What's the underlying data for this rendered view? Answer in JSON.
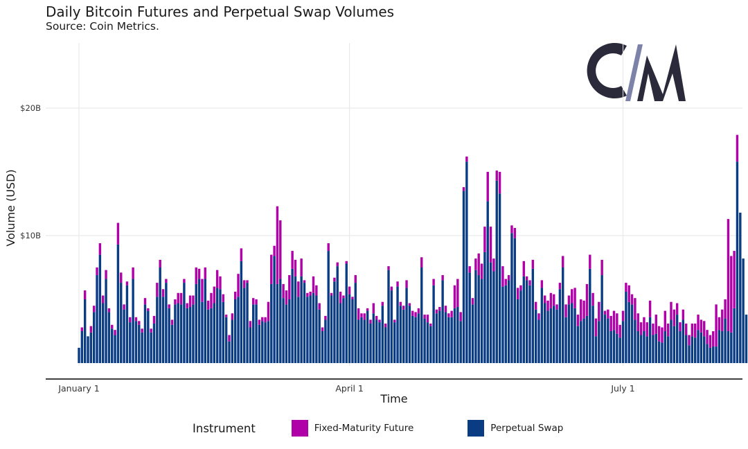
{
  "title": "Daily Bitcoin Futures and Perpetual Swap Volumes",
  "subtitle": "Source: Coin Metrics.",
  "logo": {
    "alt": "CM",
    "color_dark": "#2a2a3a",
    "color_light": "#7d82a8"
  },
  "colors": {
    "fixed": "#b000a8",
    "perpetual": "#0a3c84",
    "grid": "#e6e6e6",
    "axis": "#000000"
  },
  "legend": {
    "title": "Instrument",
    "items": [
      {
        "label": "Fixed-Maturity Future",
        "color": "#b000a8"
      },
      {
        "label": "Perpetual Swap",
        "color": "#0a3c84"
      }
    ]
  },
  "chart_data": {
    "type": "bar",
    "stacked": true,
    "title": "Daily Bitcoin Futures and Perpetual Swap Volumes",
    "xlabel": "Time",
    "ylabel": "Volume (USD)",
    "ylim": [
      0,
      25
    ],
    "y_unit": "USD billions",
    "y_ticks": [
      {
        "value": 10,
        "label": "$10B"
      },
      {
        "value": 20,
        "label": "$20B"
      }
    ],
    "x_ticks": [
      {
        "day": 0,
        "label": "January 1"
      },
      {
        "day": 90,
        "label": "April 1"
      },
      {
        "day": 181,
        "label": "July 1"
      }
    ],
    "series": [
      {
        "name": "Fixed-Maturity Future",
        "values": [
          0,
          0.3,
          0.7,
          0,
          0.5,
          0.5,
          0.6,
          0.9,
          0.6,
          0.7,
          0.3,
          0.3,
          0.4,
          1.7,
          0.8,
          0.4,
          0.3,
          0.4,
          0.9,
          0.3,
          0.3,
          0.3,
          0.5,
          0.2,
          0.3,
          0.6,
          1.1,
          0.6,
          0.6,
          0.3,
          0.3,
          0.4,
          0.4,
          0.8,
          0.9,
          0.3,
          0.4,
          0.9,
          0.7,
          1.3,
          0.8,
          1.8,
          0.9,
          0.7,
          1.2,
          1.3,
          1.4,
          1.0,
          0.6,
          0.2,
          0.5,
          0.5,
          0.6,
          1.8,
          1.0,
          0.6,
          0.2,
          0.5,
          0.5,
          0.4,
          0.4,
          0.3,
          0.4,
          1.5,
          2.3,
          0.8,
          6.1,
          4.6,
          1.1,
          1.1,
          1.9,
          1.4,
          1.3,
          1.2,
          1.4,
          0.2,
          0.3,
          0.3,
          1.3,
          0.8,
          0.5,
          0.3,
          0.3,
          0.6,
          0.2,
          0.3,
          0.3,
          0.9,
          0.2,
          0.2,
          0.6,
          0.2,
          0.6,
          0.9,
          0.3,
          0.5,
          0.2,
          0.3,
          0.8,
          0.3,
          0.2,
          0.3,
          0.3,
          0.3,
          0.3,
          0.2,
          0.4,
          0.3,
          0.3,
          0.6,
          0.2,
          0.4,
          0.4,
          0.4,
          0.8,
          0.3,
          0.6,
          0.2,
          0.5,
          0.3,
          0.3,
          0.4,
          0.5,
          0.3,
          0.5,
          1.8,
          2.2,
          0.7,
          0.3,
          0.4,
          0.5,
          0.5,
          0.9,
          1.7,
          1.2,
          2.0,
          2.3,
          2.8,
          1.0,
          0.8,
          1.7,
          1.6,
          0.5,
          0.4,
          0.6,
          0.8,
          0.9,
          0.4,
          1.2,
          0.3,
          0.4,
          0.7,
          0.6,
          0.5,
          0.6,
          0.6,
          0.8,
          1.2,
          0.9,
          0.4,
          0.5,
          0.9,
          1.0,
          0.7,
          1.1,
          1.6,
          0.9,
          1.7,
          1.4,
          2.5,
          1.1,
          1.0,
          1.4,
          1.5,
          1.2,
          0.3,
          0.7,
          1.2,
          1.5,
          1.6,
          1.0,
          0.8,
          0.7,
          1.3,
          0.8,
          1.7,
          1.4,
          1.0,
          1.1,
          1.1,
          1.3,
          0.9,
          1.5,
          1.2,
          1.2,
          1.6,
          1.0,
          1.4,
          1.3,
          0.9,
          0.7,
          0.8,
          0.9,
          0.8,
          1.0,
          1.1,
          1.2,
          1.0,
          1.2,
          1.1,
          1.0,
          1.2,
          3.3,
          1.0,
          1.7,
          1.5,
          8.8,
          6.0,
          4.5,
          2.1
        ]
      },
      {
        "name": "Perpetual Swap",
        "values": [
          1.2,
          2.5,
          5.0,
          2.1,
          2.4,
          4.0,
          6.9,
          8.5,
          4.7,
          6.6,
          4.0,
          2.7,
          2.2,
          9.3,
          6.3,
          4.2,
          6.1,
          3.2,
          6.6,
          3.3,
          3.0,
          2.4,
          4.6,
          4.1,
          2.4,
          3.1,
          5.2,
          7.5,
          5.2,
          6.3,
          4.3,
          3.0,
          4.6,
          4.7,
          4.6,
          6.3,
          4.3,
          4.4,
          4.6,
          6.2,
          6.6,
          4.8,
          6.6,
          4.2,
          4.3,
          4.7,
          5.9,
          5.8,
          4.8,
          3.6,
          1.7,
          3.4,
          5.0,
          5.2,
          8.0,
          5.9,
          6.3,
          2.8,
          4.6,
          4.6,
          3.0,
          3.3,
          3.2,
          3.3,
          6.2,
          8.4,
          6.2,
          6.6,
          5.1,
          4.6,
          5.0,
          7.4,
          6.8,
          5.2,
          6.8,
          6.3,
          5.2,
          5.3,
          5.5,
          5.3,
          4.2,
          2.5,
          3.4,
          8.8,
          5.3,
          6.4,
          7.6,
          4.7,
          5.1,
          7.8,
          5.4,
          5.0,
          6.3,
          3.4,
          3.6,
          3.4,
          4.1,
          3.1,
          3.9,
          3.4,
          3.2,
          4.5,
          2.8,
          7.3,
          5.7,
          3.2,
          6.0,
          4.5,
          4.2,
          5.9,
          4.5,
          3.7,
          3.6,
          3.9,
          7.5,
          3.5,
          3.2,
          2.9,
          6.1,
          3.9,
          4.1,
          6.5,
          4.0,
          3.6,
          3.6,
          4.3,
          4.4,
          3.3,
          13.5,
          15.8,
          7.1,
          4.6,
          7.3,
          6.9,
          6.6,
          8.7,
          12.7,
          7.9,
          7.2,
          14.3,
          13.3,
          6.0,
          6.1,
          6.5,
          10.2,
          9.8,
          5.0,
          5.7,
          6.8,
          6.5,
          6.1,
          7.4,
          4.2,
          3.4,
          5.9,
          4.7,
          4.1,
          4.3,
          4.5,
          4.2,
          5.8,
          7.5,
          3.6,
          4.6,
          4.7,
          4.3,
          2.9,
          3.3,
          3.5,
          3.7,
          7.4,
          4.5,
          2.1,
          3.3,
          6.9,
          3.8,
          3.5,
          2.5,
          2.6,
          2.3,
          2.0,
          3.3,
          5.6,
          4.8,
          4.6,
          3.4,
          2.5,
          2.2,
          2.5,
          2.1,
          3.6,
          2.2,
          2.3,
          1.7,
          1.6,
          2.5,
          2.1,
          3.4,
          2.9,
          3.8,
          2.5,
          3.4,
          2.2,
          1.4,
          2.1,
          2.0,
          2.6,
          2.4,
          2.1,
          1.5,
          1.2,
          1.3,
          1.3,
          2.6,
          2.5,
          3.5,
          2.5,
          2.4,
          4.3,
          15.8,
          11.8,
          8.2,
          3.8
        ]
      }
    ]
  }
}
